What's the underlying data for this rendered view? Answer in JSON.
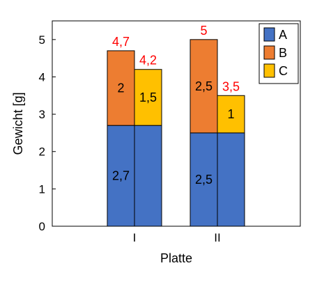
{
  "chart_data": {
    "type": "bar",
    "stacking": "stacked-side-by-side",
    "xlabel": "Platte",
    "ylabel": "Gewicht [g]",
    "ylim": [
      0,
      5.5
    ],
    "yticks": [
      "0",
      "1",
      "2",
      "3",
      "4",
      "5"
    ],
    "grid": false,
    "legend_position": "top-right",
    "categories": [
      "I",
      "II"
    ],
    "colors": {
      "A": "#4472c4",
      "B": "#ed7d31",
      "C": "#ffc000",
      "total_label": "#ff0000"
    },
    "stacks": [
      {
        "category": "I",
        "columns": [
          {
            "total": 4.7,
            "total_label": "4,7",
            "segments": [
              {
                "series": "A",
                "value": 2.7,
                "label": "2,7"
              },
              {
                "series": "B",
                "value": 2.0,
                "label": "2"
              }
            ]
          },
          {
            "total": 4.2,
            "total_label": "4,2",
            "segments": [
              {
                "series": "A",
                "value": 2.7,
                "label": ""
              },
              {
                "series": "C",
                "value": 1.5,
                "label": "1,5"
              }
            ]
          }
        ]
      },
      {
        "category": "II",
        "columns": [
          {
            "total": 5.0,
            "total_label": "5",
            "segments": [
              {
                "series": "A",
                "value": 2.5,
                "label": "2,5"
              },
              {
                "series": "B",
                "value": 2.5,
                "label": "2,5"
              }
            ]
          },
          {
            "total": 3.5,
            "total_label": "3,5",
            "segments": [
              {
                "series": "A",
                "value": 2.5,
                "label": ""
              },
              {
                "series": "C",
                "value": 1.0,
                "label": "1"
              }
            ]
          }
        ]
      }
    ],
    "legend": [
      {
        "series": "A",
        "label": "A"
      },
      {
        "series": "B",
        "label": "B"
      },
      {
        "series": "C",
        "label": "C"
      }
    ]
  }
}
